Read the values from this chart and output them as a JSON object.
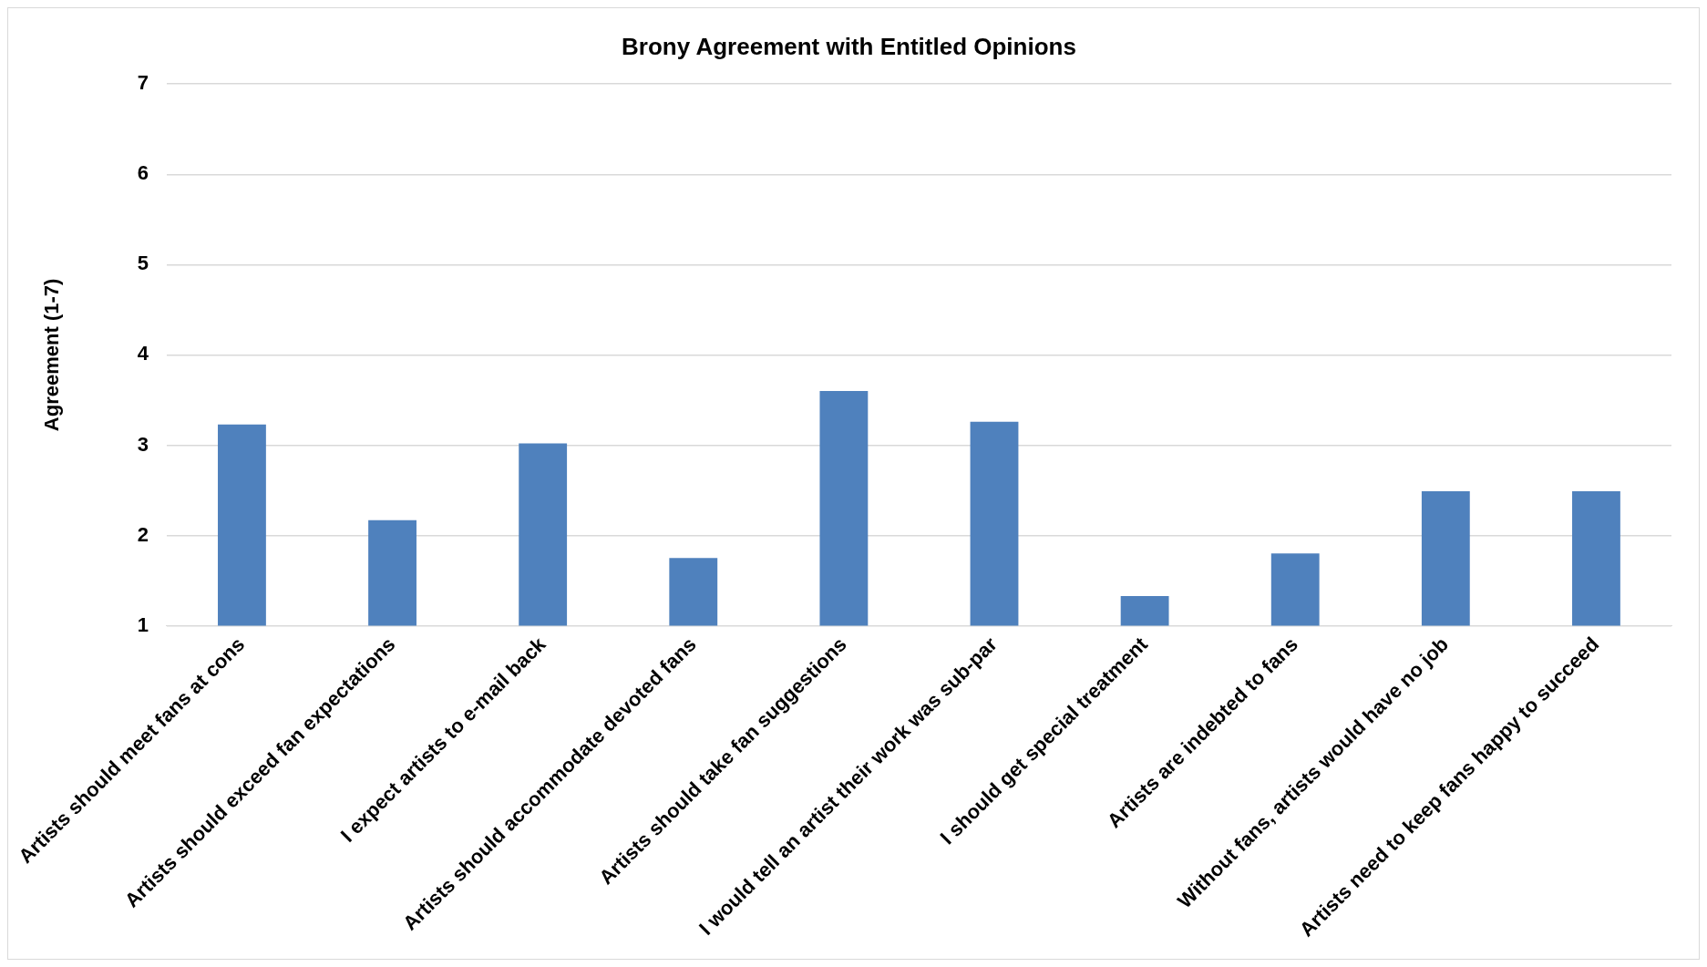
{
  "chart_data": {
    "type": "bar",
    "title": "Brony Agreement with Entitled Opinions",
    "ylabel": "Agreement (1-7)",
    "categories": [
      "Artists should meet fans at cons",
      "Artists should exceed fan expectations",
      "I expect artists to e-mail back",
      "Artists should accommodate devoted fans",
      "Artists should take fan suggestions",
      "I would tell an artist their work was sub-par",
      "I should get special treatment",
      "Artists are indebted to fans",
      "Without fans, artists would have no job",
      "Artists need to keep fans happy to succeed"
    ],
    "values": [
      3.23,
      2.17,
      3.02,
      1.75,
      3.6,
      3.26,
      1.33,
      1.8,
      2.49,
      2.49
    ],
    "color": "#4f81bd",
    "ylim": [
      1,
      7
    ],
    "yticks": [
      1,
      2,
      3,
      4,
      5,
      6,
      7
    ],
    "grid": "y",
    "legend": false
  }
}
